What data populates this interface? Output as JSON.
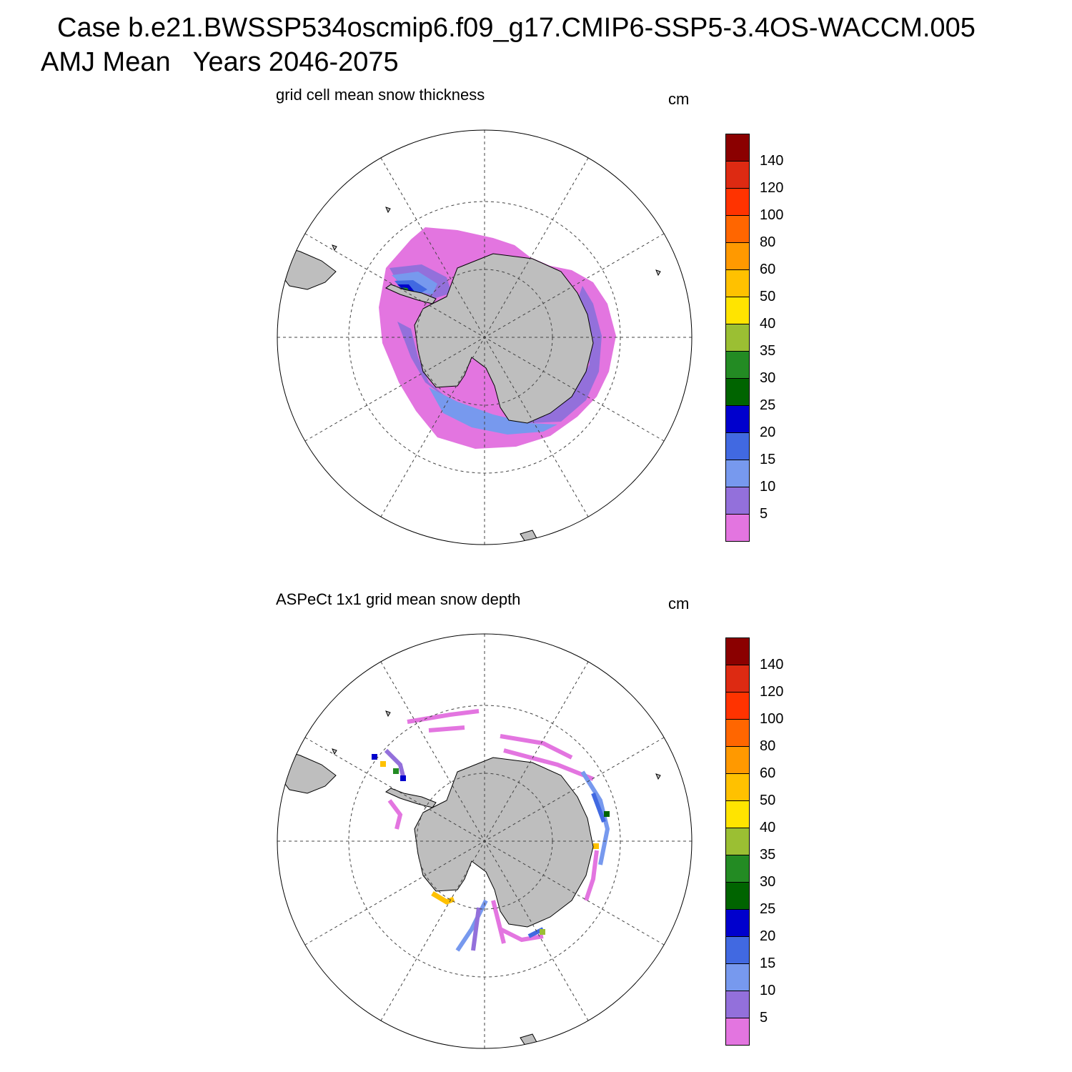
{
  "header": {
    "line1": "Case b.e21.BWSSP534oscmip6.f09_g17.CMIP6-SSP5-3.4OS-WACCM.005",
    "line2": "AMJ Mean   Years 2046-2075"
  },
  "panels": [
    {
      "title": "grid cell mean snow thickness",
      "units": "cm"
    },
    {
      "title": "ASPeCt 1x1 grid mean snow depth",
      "units": "cm"
    }
  ],
  "colorbar": {
    "labels": [
      "140",
      "120",
      "100",
      "80",
      "60",
      "50",
      "40",
      "35",
      "30",
      "25",
      "20",
      "15",
      "10",
      "5"
    ],
    "colors": [
      "#8b0000",
      "#dd2a12",
      "#ff3300",
      "#ff6600",
      "#ff9900",
      "#ffc100",
      "#ffe400",
      "#9bbf33",
      "#238b23",
      "#006400",
      "#0000cd",
      "#4169e1",
      "#7799ee",
      "#9370db",
      "#e375e0"
    ]
  },
  "map_colors": {
    "land": "#bebebe",
    "ocean": "#ffffff"
  }
}
